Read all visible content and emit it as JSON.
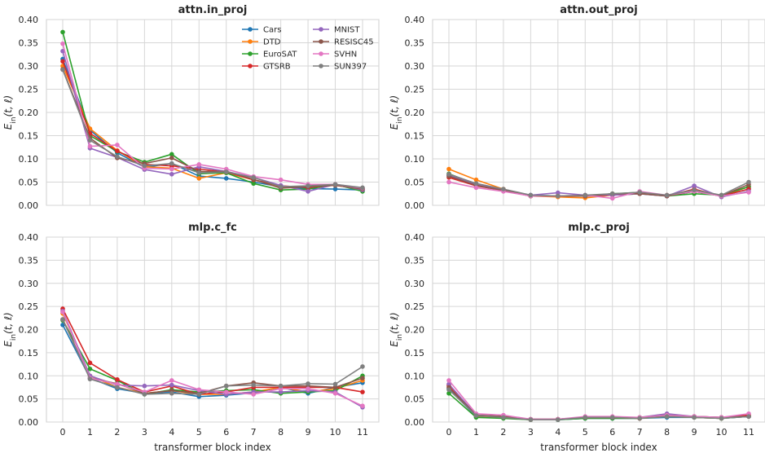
{
  "chart_data": [
    {
      "type": "line",
      "title": "attn.in_proj",
      "xlabel": "",
      "ylabel": "E_in(t, ℓ)",
      "x": [
        0,
        1,
        2,
        3,
        4,
        5,
        6,
        7,
        8,
        9,
        10,
        11
      ],
      "ylim": [
        0,
        0.4
      ],
      "yticks": [
        "0.00",
        "0.05",
        "0.10",
        "0.15",
        "0.20",
        "0.25",
        "0.30",
        "0.35",
        "0.40"
      ],
      "grid": true,
      "legend": "top-right",
      "series": [
        {
          "name": "Cars",
          "values": [
            0.315,
            0.162,
            0.113,
            0.082,
            0.09,
            0.063,
            0.058,
            0.05,
            0.04,
            0.036,
            0.035,
            0.033
          ]
        },
        {
          "name": "DTD",
          "values": [
            0.3,
            0.165,
            0.118,
            0.083,
            0.08,
            0.058,
            0.07,
            0.055,
            0.04,
            0.04,
            0.043,
            0.035
          ]
        },
        {
          "name": "EuroSAT",
          "values": [
            0.373,
            0.15,
            0.116,
            0.093,
            0.11,
            0.068,
            0.07,
            0.047,
            0.033,
            0.035,
            0.045,
            0.03
          ]
        },
        {
          "name": "GTSRB",
          "values": [
            0.31,
            0.155,
            0.117,
            0.088,
            0.085,
            0.078,
            0.072,
            0.055,
            0.042,
            0.038,
            0.045,
            0.035
          ]
        },
        {
          "name": "MNIST",
          "values": [
            0.332,
            0.123,
            0.103,
            0.077,
            0.067,
            0.083,
            0.073,
            0.06,
            0.043,
            0.03,
            0.045,
            0.033
          ]
        },
        {
          "name": "RESISC45",
          "values": [
            0.293,
            0.145,
            0.102,
            0.09,
            0.102,
            0.073,
            0.073,
            0.056,
            0.037,
            0.04,
            0.043,
            0.035
          ]
        },
        {
          "name": "SVHN",
          "values": [
            0.348,
            0.127,
            0.13,
            0.08,
            0.078,
            0.088,
            0.078,
            0.062,
            0.055,
            0.045,
            0.045,
            0.037
          ]
        },
        {
          "name": "SUN397",
          "values": [
            0.292,
            0.14,
            0.105,
            0.085,
            0.09,
            0.07,
            0.072,
            0.06,
            0.04,
            0.042,
            0.045,
            0.038
          ]
        }
      ]
    },
    {
      "type": "line",
      "title": "attn.out_proj",
      "xlabel": "",
      "ylabel": "E_in(t, ℓ)",
      "x": [
        0,
        1,
        2,
        3,
        4,
        5,
        6,
        7,
        8,
        9,
        10,
        11
      ],
      "ylim": [
        0,
        0.4
      ],
      "yticks": [
        "0.00",
        "0.05",
        "0.10",
        "0.15",
        "0.20",
        "0.25",
        "0.30",
        "0.35",
        "0.40"
      ],
      "grid": true,
      "series": [
        {
          "name": "Cars",
          "values": [
            0.065,
            0.045,
            0.033,
            0.022,
            0.02,
            0.02,
            0.022,
            0.025,
            0.02,
            0.03,
            0.02,
            0.035
          ]
        },
        {
          "name": "DTD",
          "values": [
            0.078,
            0.055,
            0.035,
            0.02,
            0.018,
            0.016,
            0.022,
            0.025,
            0.022,
            0.03,
            0.02,
            0.04
          ]
        },
        {
          "name": "EuroSAT",
          "values": [
            0.068,
            0.045,
            0.032,
            0.02,
            0.02,
            0.02,
            0.025,
            0.028,
            0.02,
            0.025,
            0.022,
            0.04
          ]
        },
        {
          "name": "GTSRB",
          "values": [
            0.06,
            0.042,
            0.032,
            0.02,
            0.02,
            0.02,
            0.022,
            0.028,
            0.02,
            0.035,
            0.02,
            0.035
          ]
        },
        {
          "name": "MNIST",
          "values": [
            0.065,
            0.045,
            0.033,
            0.022,
            0.027,
            0.022,
            0.022,
            0.025,
            0.02,
            0.042,
            0.018,
            0.03
          ]
        },
        {
          "name": "RESISC45",
          "values": [
            0.063,
            0.043,
            0.032,
            0.02,
            0.02,
            0.02,
            0.025,
            0.025,
            0.02,
            0.03,
            0.02,
            0.045
          ]
        },
        {
          "name": "SVHN",
          "values": [
            0.05,
            0.038,
            0.03,
            0.02,
            0.02,
            0.022,
            0.015,
            0.03,
            0.022,
            0.03,
            0.02,
            0.028
          ]
        },
        {
          "name": "SUN397",
          "values": [
            0.067,
            0.047,
            0.035,
            0.022,
            0.02,
            0.022,
            0.025,
            0.028,
            0.022,
            0.033,
            0.022,
            0.05
          ]
        }
      ]
    },
    {
      "type": "line",
      "title": "mlp.c_fc",
      "xlabel": "transformer block index",
      "ylabel": "E_in(t, ℓ)",
      "x": [
        0,
        1,
        2,
        3,
        4,
        5,
        6,
        7,
        8,
        9,
        10,
        11
      ],
      "ylim": [
        0,
        0.4
      ],
      "yticks": [
        "0.00",
        "0.05",
        "0.10",
        "0.15",
        "0.20",
        "0.25",
        "0.30",
        "0.35",
        "0.40"
      ],
      "grid": true,
      "series": [
        {
          "name": "Cars",
          "values": [
            0.21,
            0.095,
            0.072,
            0.062,
            0.065,
            0.055,
            0.058,
            0.063,
            0.075,
            0.062,
            0.075,
            0.085
          ]
        },
        {
          "name": "DTD",
          "values": [
            0.235,
            0.1,
            0.075,
            0.062,
            0.068,
            0.06,
            0.06,
            0.065,
            0.075,
            0.065,
            0.072,
            0.09
          ]
        },
        {
          "name": "EuroSAT",
          "values": [
            0.22,
            0.115,
            0.09,
            0.06,
            0.07,
            0.065,
            0.068,
            0.07,
            0.062,
            0.065,
            0.068,
            0.1
          ]
        },
        {
          "name": "GTSRB",
          "values": [
            0.245,
            0.128,
            0.092,
            0.065,
            0.078,
            0.06,
            0.065,
            0.075,
            0.075,
            0.075,
            0.075,
            0.065
          ]
        },
        {
          "name": "MNIST",
          "values": [
            0.24,
            0.1,
            0.08,
            0.078,
            0.08,
            0.068,
            0.06,
            0.065,
            0.065,
            0.068,
            0.065,
            0.032
          ]
        },
        {
          "name": "RESISC45",
          "values": [
            0.222,
            0.095,
            0.083,
            0.062,
            0.068,
            0.062,
            0.078,
            0.085,
            0.078,
            0.078,
            0.075,
            0.095
          ]
        },
        {
          "name": "SVHN",
          "values": [
            0.238,
            0.095,
            0.082,
            0.065,
            0.09,
            0.07,
            0.065,
            0.06,
            0.072,
            0.072,
            0.062,
            0.035
          ]
        },
        {
          "name": "SUN397",
          "values": [
            0.222,
            0.093,
            0.075,
            0.06,
            0.062,
            0.06,
            0.078,
            0.08,
            0.078,
            0.083,
            0.082,
            0.12
          ]
        }
      ]
    },
    {
      "type": "line",
      "title": "mlp.c_proj",
      "xlabel": "transformer block index",
      "ylabel": "E_in(t, ℓ)",
      "x": [
        0,
        1,
        2,
        3,
        4,
        5,
        6,
        7,
        8,
        9,
        10,
        11
      ],
      "ylim": [
        0,
        0.4
      ],
      "yticks": [
        "0.00",
        "0.05",
        "0.10",
        "0.15",
        "0.20",
        "0.25",
        "0.30",
        "0.35",
        "0.40"
      ],
      "grid": true,
      "series": [
        {
          "name": "Cars",
          "values": [
            0.072,
            0.012,
            0.01,
            0.005,
            0.005,
            0.008,
            0.008,
            0.008,
            0.01,
            0.01,
            0.008,
            0.012
          ]
        },
        {
          "name": "DTD",
          "values": [
            0.078,
            0.013,
            0.01,
            0.005,
            0.006,
            0.009,
            0.01,
            0.008,
            0.012,
            0.01,
            0.008,
            0.015
          ]
        },
        {
          "name": "EuroSAT",
          "values": [
            0.062,
            0.01,
            0.008,
            0.005,
            0.005,
            0.008,
            0.008,
            0.008,
            0.012,
            0.01,
            0.008,
            0.012
          ]
        },
        {
          "name": "GTSRB",
          "values": [
            0.08,
            0.015,
            0.012,
            0.006,
            0.006,
            0.01,
            0.01,
            0.008,
            0.015,
            0.012,
            0.01,
            0.015
          ]
        },
        {
          "name": "MNIST",
          "values": [
            0.082,
            0.015,
            0.012,
            0.006,
            0.006,
            0.01,
            0.01,
            0.01,
            0.018,
            0.012,
            0.01,
            0.012
          ]
        },
        {
          "name": "RESISC45",
          "values": [
            0.075,
            0.015,
            0.012,
            0.006,
            0.006,
            0.01,
            0.01,
            0.01,
            0.015,
            0.012,
            0.01,
            0.012
          ]
        },
        {
          "name": "SVHN",
          "values": [
            0.09,
            0.018,
            0.015,
            0.006,
            0.006,
            0.012,
            0.012,
            0.01,
            0.015,
            0.012,
            0.01,
            0.018
          ]
        },
        {
          "name": "SUN397",
          "values": [
            0.07,
            0.014,
            0.01,
            0.005,
            0.005,
            0.01,
            0.01,
            0.008,
            0.012,
            0.01,
            0.008,
            0.012
          ]
        }
      ]
    }
  ],
  "legend_entries": [
    "Cars",
    "DTD",
    "EuroSAT",
    "GTSRB",
    "MNIST",
    "RESISC45",
    "SVHN",
    "SUN397"
  ],
  "colors": {
    "Cars": "#1f77b4",
    "DTD": "#ff7f0e",
    "EuroSAT": "#2ca02c",
    "GTSRB": "#d62728",
    "MNIST": "#9467bd",
    "RESISC45": "#8c564b",
    "SVHN": "#e377c2",
    "SUN397": "#7f7f7f"
  }
}
